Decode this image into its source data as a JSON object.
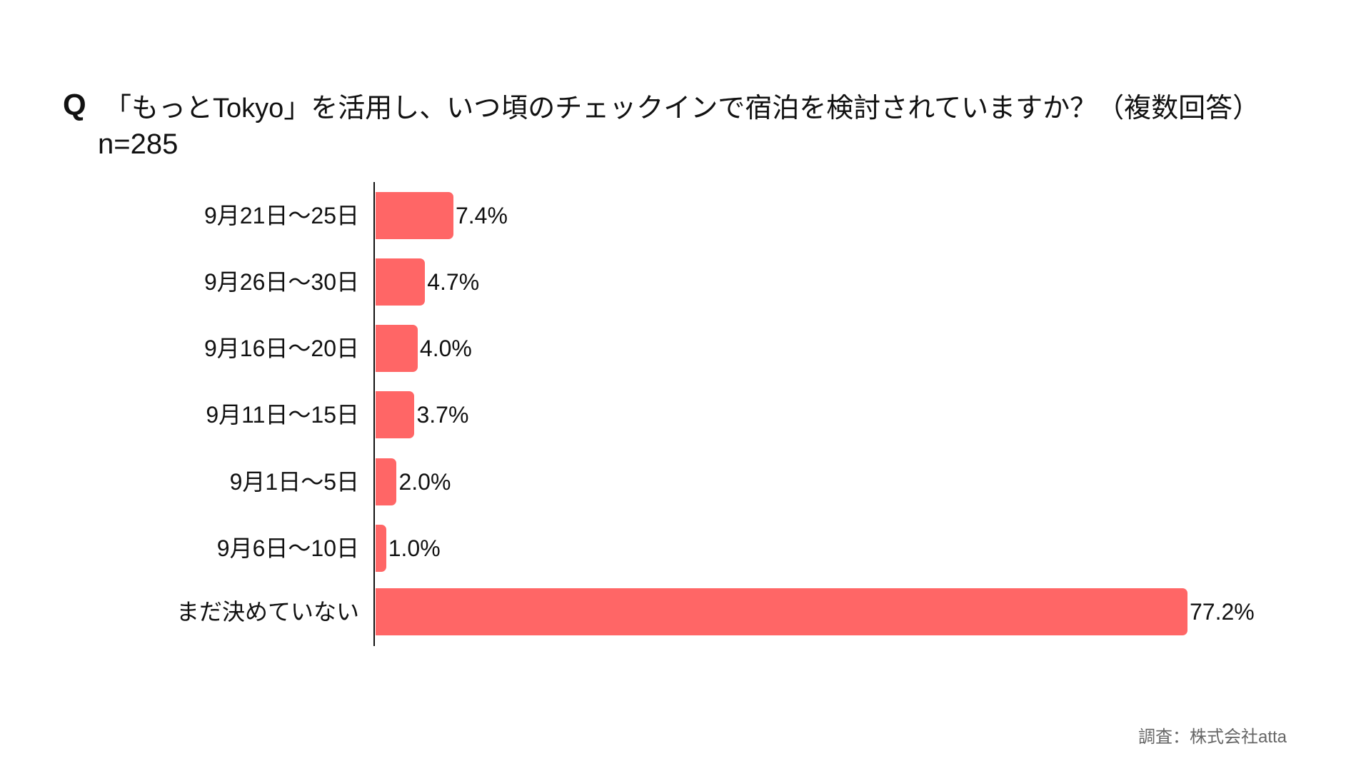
{
  "header": {
    "q_mark": "Q",
    "title": "「もっとTokyo」を活用し、いつ頃のチェックインで宿泊を検討されていますか？（複数回答）",
    "sample": "n=285"
  },
  "footer": {
    "source": "調査：株式会社atta"
  },
  "colors": {
    "bar": "#FF6666",
    "axis": "#111111",
    "text": "#111111",
    "footnote": "#666666"
  },
  "chart_data": {
    "type": "bar",
    "orientation": "horizontal",
    "title": "「もっとTokyo」を活用し、いつ頃のチェックインで宿泊を検討されていますか？（複数回答）",
    "subtitle": "n=285",
    "categories": [
      "9月21日〜25日",
      "9月26日〜30日",
      "9月16日〜20日",
      "9月11日〜15日",
      "9月1日〜5日",
      "9月6日〜10日",
      "まだ決めていない"
    ],
    "values": [
      7.4,
      4.7,
      4.0,
      3.7,
      2.0,
      1.0,
      77.2
    ],
    "value_labels": [
      "7.4%",
      "4.7%",
      "4.0%",
      "3.7%",
      "2.0%",
      "1.0%",
      "77.2%"
    ],
    "unit": "%",
    "xlabel": "",
    "ylabel": "",
    "xlim": [
      0,
      77.2
    ],
    "grid": false,
    "legend": null,
    "annotations": [
      "調査：株式会社atta"
    ]
  }
}
